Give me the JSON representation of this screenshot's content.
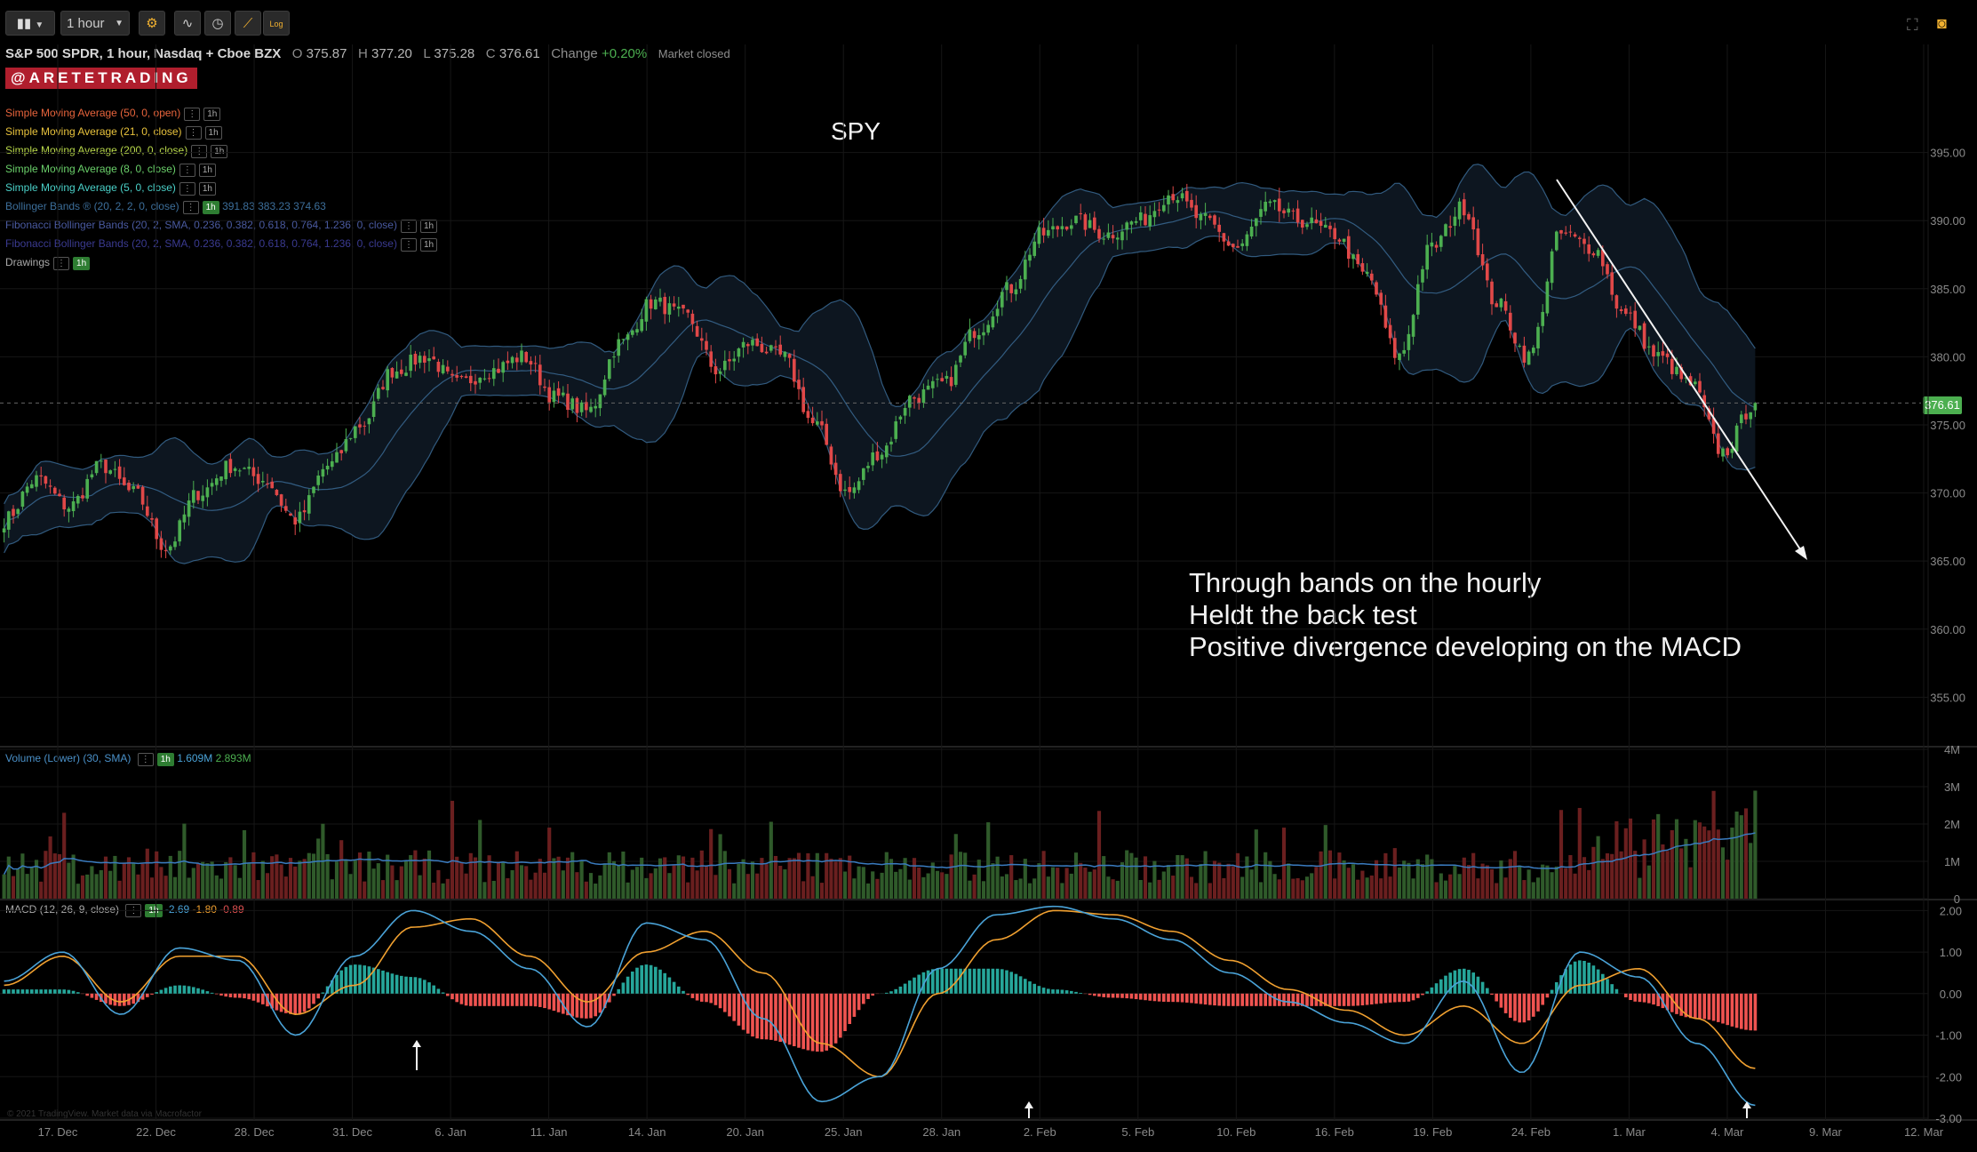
{
  "toolbar": {
    "timeframe": "1 hour",
    "log_label": "Log",
    "icons": [
      "chart-style-icon",
      "chevron-down-icon",
      "settings-icon",
      "studies-icon",
      "clock-icon",
      "drawing-icon",
      "log-scale-icon",
      "fullscreen-icon",
      "camera-icon"
    ]
  },
  "header": {
    "instrument": "S&P 500 SPDR, 1 hour, Nasdaq + Cboe BZX",
    "o_label": "O",
    "o_value": "375.87",
    "h_label": "H",
    "h_value": "377.20",
    "l_label": "L",
    "l_value": "375.28",
    "c_label": "C",
    "c_value": "376.61",
    "change_label": "Change",
    "change_value": "+0.20%",
    "status": "Market closed"
  },
  "logo": "@ARETETRADING",
  "studies": [
    {
      "label": "Simple Moving Average (50, 0, open)",
      "color": "#e8643c",
      "tf": "1h"
    },
    {
      "label": "Simple Moving Average (21, 0, close)",
      "color": "#e8c23c",
      "tf": "1h"
    },
    {
      "label": "Simple Moving Average (200, 0, close)",
      "color": "#b8d84a",
      "tf": "1h"
    },
    {
      "label": "Simple Moving Average (8, 0, close)",
      "color": "#6ad06a",
      "tf": "1h"
    },
    {
      "label": "Simple Moving Average (5, 0, close)",
      "color": "#4ad0c8",
      "tf": "1h"
    },
    {
      "label": "Bollinger Bands ® (20, 2, 2, 0, close)",
      "color": "#3c6e9a",
      "tf": "1h",
      "values": "391.83 383.23 374.63"
    },
    {
      "label": "Fibonacci Bollinger Bands (20, 2, SMA, 0.236, 0.382, 0.618, 0.764, 1.236, 0, close)",
      "color": "#4a5aa0",
      "tf": "1h"
    },
    {
      "label": "Fibonacci Bollinger Bands (20, 2, SMA, 0.236, 0.382, 0.618, 0.764, 1.236, 0, close)",
      "color": "#3a3a90",
      "tf": "1h"
    },
    {
      "label": "Drawings",
      "color": "#aaaaaa",
      "tf": "1h"
    }
  ],
  "symbol_label": "SPY",
  "annotation": [
    "Through bands on the hourly",
    "Heldt the back test",
    "Positive divergence developing on the MACD"
  ],
  "last_price": "376.61",
  "volume": {
    "label": "Volume (Lower) (30, SMA)",
    "tf": "1h",
    "v1": "1.609M",
    "v2": "2.893M"
  },
  "macd": {
    "label": "MACD (12, 26, 9, close)",
    "tf": "1h",
    "v1": "-2.69",
    "v2": "-1.80",
    "v3": "-0.89"
  },
  "watermark": "© 2021 TradingView. Market data via Macrofactor",
  "colors": {
    "up": "#4caf50",
    "down": "#e04848",
    "band": "#3c6e9a",
    "macd": "#4aa3d8",
    "signal": "#f0a030",
    "hist_pos": "#26a69a",
    "hist_neg": "#ef5350"
  },
  "chart_data": [
    {
      "type": "candlestick",
      "title": "SPY",
      "y_ticks": [
        "395.00",
        "390.00",
        "385.00",
        "380.00",
        "375.00",
        "370.00",
        "365.00",
        "360.00",
        "355.00"
      ],
      "ylim": [
        351.5,
        400
      ],
      "x_ticks": [
        "17. Dec",
        "22. Dec",
        "28. Dec",
        "31. Dec",
        "6. Jan",
        "11. Jan",
        "14. Jan",
        "20. Jan",
        "25. Jan",
        "28. Jan",
        "2. Feb",
        "5. Feb",
        "10. Feb",
        "16. Feb",
        "19. Feb",
        "24. Feb",
        "1. Mar",
        "4. Mar",
        "9. Mar",
        "12. Mar"
      ],
      "close_anchors": [
        368,
        371,
        369,
        372,
        370,
        366,
        370,
        372,
        371,
        368,
        372,
        375,
        379,
        380,
        378,
        379,
        380,
        377,
        376,
        381,
        384,
        383,
        379,
        381,
        380,
        375,
        370,
        373,
        377,
        378,
        382,
        385,
        389,
        390,
        389,
        390,
        392,
        390,
        388,
        391,
        390,
        389,
        386,
        380,
        388,
        391,
        384,
        380,
        389,
        388,
        383,
        380,
        378,
        373,
        376.61
      ],
      "last_close": 376.61
    },
    {
      "type": "bar",
      "title": "Volume (Lower) (30, SMA)",
      "y_ticks": [
        "4M",
        "3M",
        "2M",
        "1M",
        "0"
      ],
      "ylim": [
        0,
        4
      ],
      "unit": "M",
      "sma": 1.609,
      "last": 2.893
    },
    {
      "type": "line",
      "title": "MACD (12, 26, 9, close)",
      "y_ticks": [
        "2.00",
        "1.00",
        "0.00",
        "-1.00",
        "-2.00",
        "-3.00"
      ],
      "ylim": [
        -3,
        2.2
      ],
      "macd_anchors": [
        0.3,
        1.0,
        -0.5,
        1.1,
        0.8,
        -1.0,
        0.9,
        2.0,
        1.5,
        0.6,
        -0.8,
        1.7,
        1.3,
        -0.6,
        -2.6,
        -2.0,
        0.6,
        1.9,
        2.1,
        1.8,
        1.3,
        0.5,
        -0.2,
        -0.7,
        -1.2,
        0.3,
        -1.9,
        1.0,
        0.4,
        -1.2,
        -2.69
      ],
      "signal_anchors": [
        0.2,
        0.9,
        -0.2,
        0.9,
        0.9,
        -0.5,
        0.2,
        1.6,
        1.8,
        0.9,
        -0.2,
        1.0,
        1.5,
        0.5,
        -1.2,
        -2.0,
        0.0,
        1.3,
        2.0,
        1.9,
        1.5,
        0.8,
        0.1,
        -0.4,
        -1.0,
        -0.3,
        -1.2,
        0.2,
        0.6,
        -0.6,
        -1.8
      ],
      "last_values": {
        "macd": -2.69,
        "signal": -1.8,
        "hist": -0.89
      }
    }
  ]
}
